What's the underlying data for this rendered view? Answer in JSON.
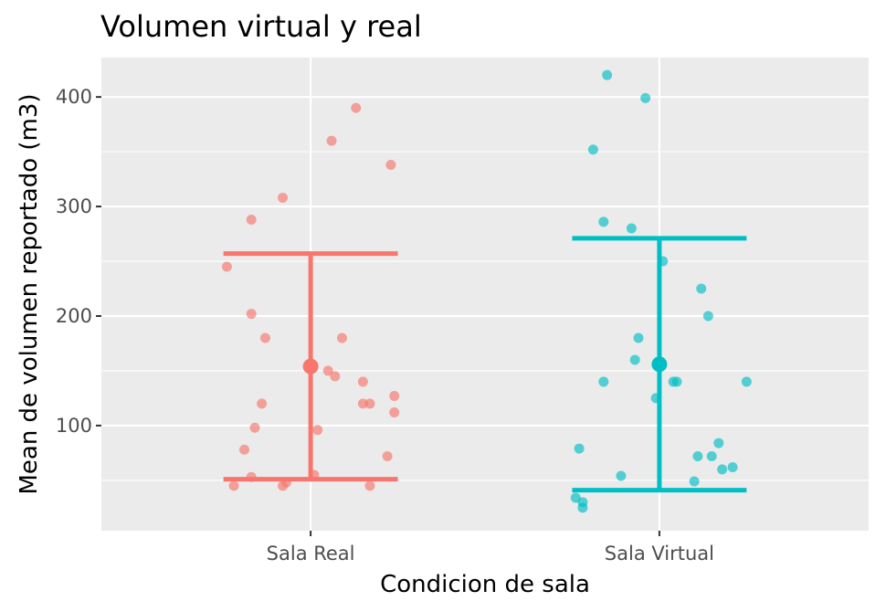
{
  "chart_data": {
    "type": "scatter",
    "title": "Volumen virtual y real",
    "xlabel": "Condicion de sala",
    "ylabel": "Mean de volumen reportado (m3)",
    "categories": [
      "Sala Real",
      "Sala Virtual"
    ],
    "yticks": [
      100,
      200,
      300,
      400
    ],
    "ylim": [
      4,
      436
    ],
    "grid": true,
    "legend": "none",
    "colors": {
      "Sala Real": "#F8766D",
      "Sala Virtual": "#00BFC4",
      "panel": "#EBEBEB",
      "grid": "#FFFFFF"
    },
    "series": [
      {
        "category": "Sala Real",
        "points": [
          {
            "x": -0.24,
            "y": 245
          },
          {
            "x": -0.17,
            "y": 288
          },
          {
            "x": -0.08,
            "y": 308
          },
          {
            "x": 0.06,
            "y": 360
          },
          {
            "x": 0.13,
            "y": 390
          },
          {
            "x": 0.23,
            "y": 338
          },
          {
            "x": -0.17,
            "y": 202
          },
          {
            "x": -0.13,
            "y": 180
          },
          {
            "x": 0.09,
            "y": 180
          },
          {
            "x": 0.05,
            "y": 150
          },
          {
            "x": 0.07,
            "y": 145
          },
          {
            "x": 0.15,
            "y": 140
          },
          {
            "x": 0.24,
            "y": 127
          },
          {
            "x": -0.14,
            "y": 120
          },
          {
            "x": 0.15,
            "y": 120
          },
          {
            "x": 0.17,
            "y": 120
          },
          {
            "x": 0.24,
            "y": 112
          },
          {
            "x": -0.16,
            "y": 98
          },
          {
            "x": 0.02,
            "y": 96
          },
          {
            "x": -0.19,
            "y": 78
          },
          {
            "x": 0.22,
            "y": 72
          },
          {
            "x": -0.17,
            "y": 53
          },
          {
            "x": 0.01,
            "y": 55
          },
          {
            "x": -0.07,
            "y": 48
          },
          {
            "x": -0.22,
            "y": 45
          },
          {
            "x": -0.08,
            "y": 45
          },
          {
            "x": 0.17,
            "y": 45
          }
        ],
        "mean": 154,
        "lower": 51,
        "upper": 257
      },
      {
        "category": "Sala Virtual",
        "points": [
          {
            "x": -0.15,
            "y": 420
          },
          {
            "x": -0.19,
            "y": 352
          },
          {
            "x": -0.04,
            "y": 399
          },
          {
            "x": -0.16,
            "y": 286
          },
          {
            "x": -0.08,
            "y": 280
          },
          {
            "x": 0.01,
            "y": 250
          },
          {
            "x": 0.12,
            "y": 225
          },
          {
            "x": 0.14,
            "y": 200
          },
          {
            "x": -0.06,
            "y": 180
          },
          {
            "x": -0.07,
            "y": 160
          },
          {
            "x": -0.16,
            "y": 140
          },
          {
            "x": 0.04,
            "y": 140
          },
          {
            "x": 0.05,
            "y": 140
          },
          {
            "x": 0.25,
            "y": 140
          },
          {
            "x": -0.01,
            "y": 125
          },
          {
            "x": -0.23,
            "y": 79
          },
          {
            "x": 0.17,
            "y": 84
          },
          {
            "x": 0.11,
            "y": 72
          },
          {
            "x": 0.15,
            "y": 72
          },
          {
            "x": 0.18,
            "y": 60
          },
          {
            "x": 0.21,
            "y": 62
          },
          {
            "x": -0.11,
            "y": 54
          },
          {
            "x": 0.1,
            "y": 49
          },
          {
            "x": -0.24,
            "y": 34
          },
          {
            "x": -0.22,
            "y": 30
          },
          {
            "x": -0.22,
            "y": 25
          }
        ],
        "mean": 156,
        "lower": 41,
        "upper": 271
      }
    ]
  }
}
